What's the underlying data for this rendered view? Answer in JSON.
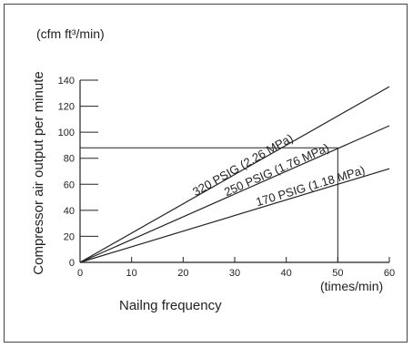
{
  "unit_label": "(cfm  ft³/min)",
  "chart_data": {
    "type": "line",
    "title": "",
    "xlabel": "Nailng frequency",
    "xunit": "(times/min)",
    "ylabel": "Compressor air output per minute",
    "xlim": [
      0,
      60
    ],
    "ylim": [
      0,
      140
    ],
    "xticks": [
      0,
      10,
      20,
      30,
      40,
      50,
      60
    ],
    "yticks": [
      0,
      20,
      40,
      60,
      80,
      100,
      120,
      140
    ],
    "grid": false,
    "series": [
      {
        "name": "320 PSIG (2.26 MPa)",
        "x": [
          0,
          60
        ],
        "y": [
          0,
          135
        ]
      },
      {
        "name": "250 PSIG (1.76 MPa)",
        "x": [
          0,
          60
        ],
        "y": [
          0,
          105
        ]
      },
      {
        "name": "170 PSIG (1.18 MPa)",
        "x": [
          0,
          60
        ],
        "y": [
          0,
          72
        ]
      }
    ],
    "reference": {
      "x": 50,
      "y": 88
    }
  }
}
